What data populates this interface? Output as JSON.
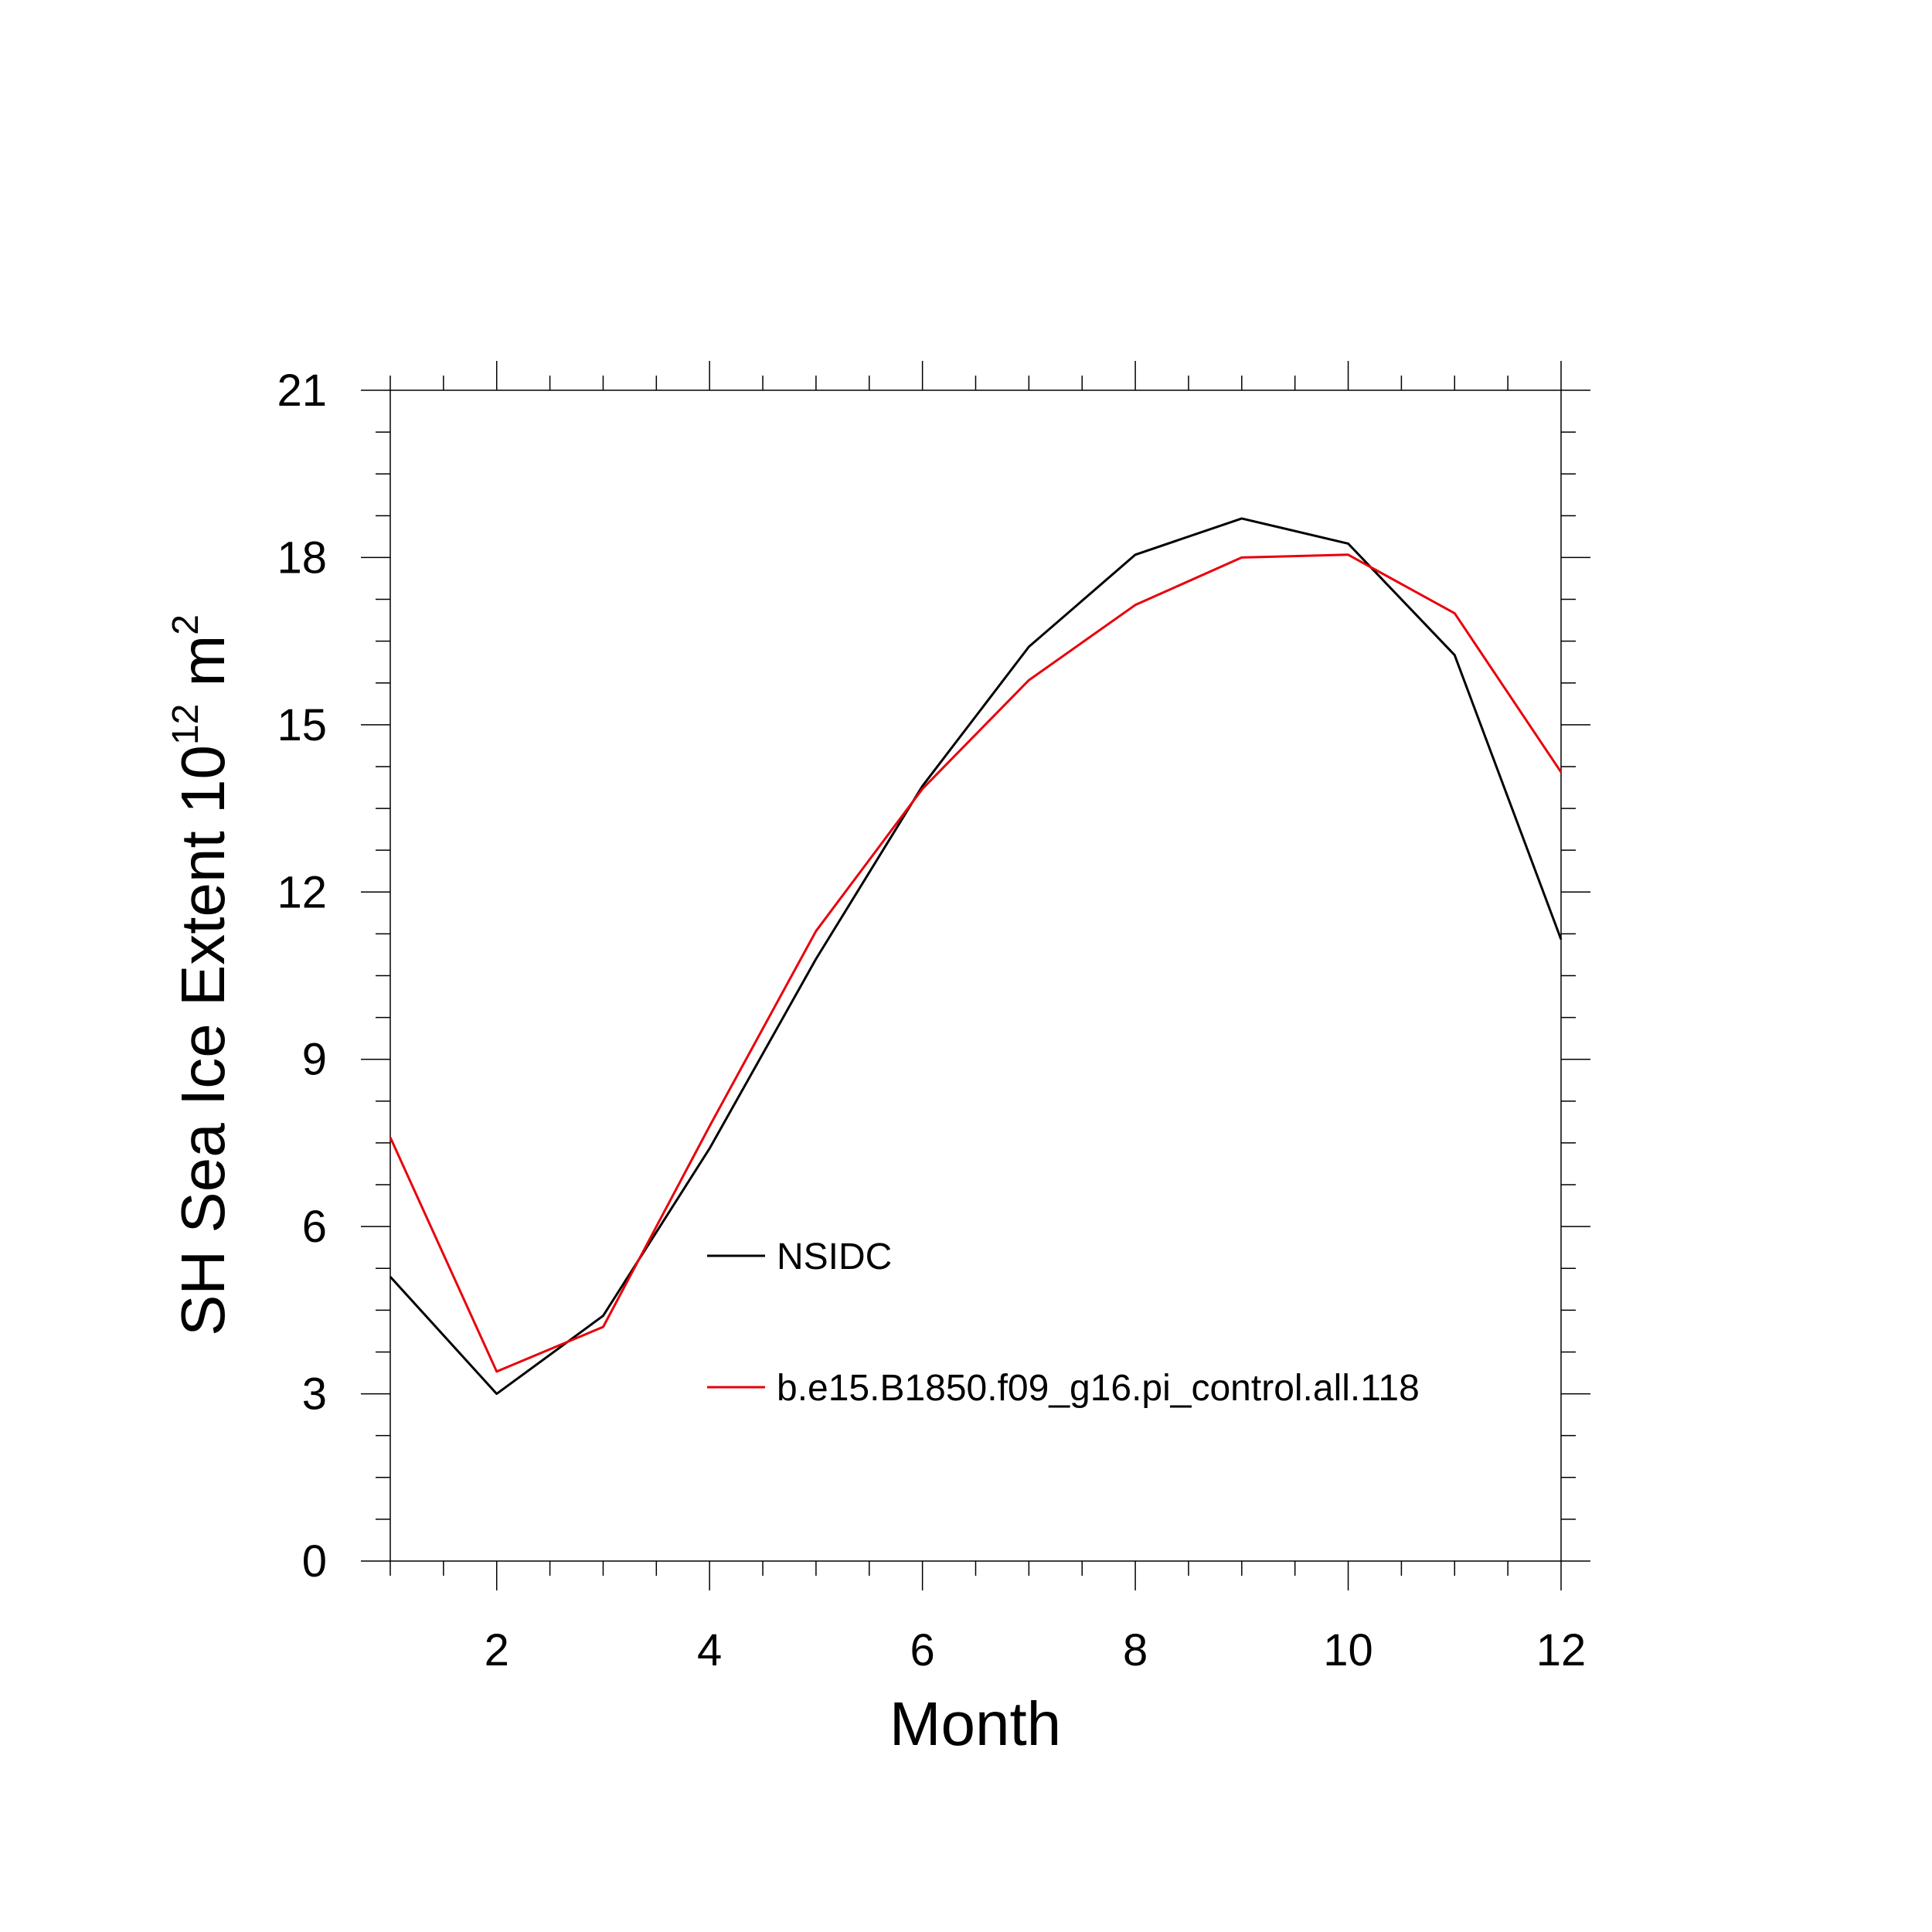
{
  "chart_data": {
    "type": "line",
    "title": "",
    "xlabel": "Month",
    "ylabel_main": "SH Sea Ice Extent 10",
    "ylabel_exp": "12",
    "ylabel_unit": " m",
    "ylabel_unit_exp": "2",
    "xlim": [
      1,
      12
    ],
    "ylim": [
      0,
      21
    ],
    "xticks": [
      2,
      4,
      6,
      8,
      10,
      12
    ],
    "yticks": [
      0,
      3,
      6,
      9,
      12,
      15,
      18,
      21
    ],
    "x": [
      1,
      2,
      3,
      4,
      5,
      6,
      7,
      8,
      9,
      10,
      11,
      12
    ],
    "grid": false,
    "legend_position": "center",
    "series": [
      {
        "name": "NSIDC",
        "color": "#000000",
        "values": [
          5.1,
          3.0,
          4.4,
          7.4,
          10.8,
          13.9,
          16.4,
          18.05,
          18.7,
          18.25,
          16.25,
          11.15
        ]
      },
      {
        "name": "b.e15.B1850.f09_g16.pi_control.all.118",
        "color": "#e8000b",
        "values": [
          7.6,
          3.4,
          4.2,
          7.8,
          11.3,
          13.85,
          15.8,
          17.15,
          18.0,
          18.05,
          17.0,
          14.15
        ]
      }
    ]
  }
}
